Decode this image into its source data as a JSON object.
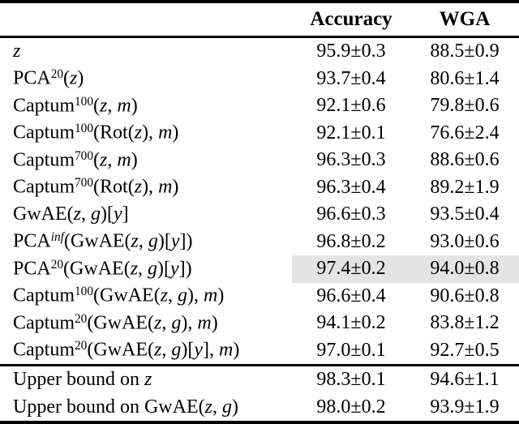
{
  "page": {
    "background": "#ffffff",
    "text_color": "#000000"
  },
  "table": {
    "header": {
      "accuracy": "Accuracy",
      "wga": "WGA"
    },
    "highlight_color": "#e4e4e4",
    "rows": [
      {
        "label": [
          [
            "it",
            "z"
          ]
        ],
        "accuracy": "95.9±0.3",
        "wga": "88.5±0.9",
        "highlight": false
      },
      {
        "label": [
          [
            "rm",
            "PCA"
          ],
          [
            "sup",
            "20"
          ],
          [
            "rm",
            "("
          ],
          [
            "it",
            "z"
          ],
          [
            "rm",
            ")"
          ]
        ],
        "accuracy": "93.7±0.4",
        "wga": "80.6±1.4",
        "highlight": false
      },
      {
        "label": [
          [
            "rm",
            "Captum"
          ],
          [
            "sup",
            "100"
          ],
          [
            "rm",
            "("
          ],
          [
            "it",
            "z"
          ],
          [
            "rm",
            ", "
          ],
          [
            "it",
            "m"
          ],
          [
            "rm",
            ")"
          ]
        ],
        "accuracy": "92.1±0.6",
        "wga": "79.8±0.6",
        "highlight": false
      },
      {
        "label": [
          [
            "rm",
            "Captum"
          ],
          [
            "sup",
            "100"
          ],
          [
            "rm",
            "(Rot("
          ],
          [
            "it",
            "z"
          ],
          [
            "rm",
            "), "
          ],
          [
            "it",
            "m"
          ],
          [
            "rm",
            ")"
          ]
        ],
        "accuracy": "92.1±0.1",
        "wga": "76.6±2.4",
        "highlight": false
      },
      {
        "label": [
          [
            "rm",
            "Captum"
          ],
          [
            "sup",
            "700"
          ],
          [
            "rm",
            "("
          ],
          [
            "it",
            "z"
          ],
          [
            "rm",
            ", "
          ],
          [
            "it",
            "m"
          ],
          [
            "rm",
            ")"
          ]
        ],
        "accuracy": "96.3±0.3",
        "wga": "88.6±0.6",
        "highlight": false
      },
      {
        "label": [
          [
            "rm",
            "Captum"
          ],
          [
            "sup",
            "700"
          ],
          [
            "rm",
            "(Rot("
          ],
          [
            "it",
            "z"
          ],
          [
            "rm",
            "), "
          ],
          [
            "it",
            "m"
          ],
          [
            "rm",
            ")"
          ]
        ],
        "accuracy": "96.3±0.4",
        "wga": "89.2±1.9",
        "highlight": false
      },
      {
        "label": [
          [
            "rm",
            "GwAE("
          ],
          [
            "it",
            "z"
          ],
          [
            "rm",
            ", "
          ],
          [
            "it",
            "g"
          ],
          [
            "rm",
            ")["
          ],
          [
            "it",
            "y"
          ],
          [
            "rm",
            "]"
          ]
        ],
        "accuracy": "96.6±0.3",
        "wga": "93.5±0.4",
        "highlight": false
      },
      {
        "label": [
          [
            "rm",
            "PCA"
          ],
          [
            "supit",
            "inf"
          ],
          [
            "rm",
            "(GwAE("
          ],
          [
            "it",
            "z"
          ],
          [
            "rm",
            ", "
          ],
          [
            "it",
            "g"
          ],
          [
            "rm",
            ")["
          ],
          [
            "it",
            "y"
          ],
          [
            "rm",
            "])"
          ]
        ],
        "accuracy": "96.8±0.2",
        "wga": "93.0±0.6",
        "highlight": false
      },
      {
        "label": [
          [
            "rm",
            "PCA"
          ],
          [
            "sup",
            "20"
          ],
          [
            "rm",
            "(GwAE("
          ],
          [
            "it",
            "z"
          ],
          [
            "rm",
            ", "
          ],
          [
            "it",
            "g"
          ],
          [
            "rm",
            ")["
          ],
          [
            "it",
            "y"
          ],
          [
            "rm",
            "])"
          ]
        ],
        "accuracy": "97.4±0.2",
        "wga": "94.0±0.8",
        "highlight": true
      },
      {
        "label": [
          [
            "rm",
            "Captum"
          ],
          [
            "sup",
            "100"
          ],
          [
            "rm",
            "(GwAE("
          ],
          [
            "it",
            "z"
          ],
          [
            "rm",
            ", "
          ],
          [
            "it",
            "g"
          ],
          [
            "rm",
            "), "
          ],
          [
            "it",
            "m"
          ],
          [
            "rm",
            ")"
          ]
        ],
        "accuracy": "96.6±0.4",
        "wga": "90.6±0.8",
        "highlight": false
      },
      {
        "label": [
          [
            "rm",
            "Captum"
          ],
          [
            "sup",
            "20"
          ],
          [
            "rm",
            "(GwAE("
          ],
          [
            "it",
            "z"
          ],
          [
            "rm",
            ", "
          ],
          [
            "it",
            "g"
          ],
          [
            "rm",
            "), "
          ],
          [
            "it",
            "m"
          ],
          [
            "rm",
            ")"
          ]
        ],
        "accuracy": "94.1±0.2",
        "wga": "83.8±1.2",
        "highlight": false
      },
      {
        "label": [
          [
            "rm",
            "Captum"
          ],
          [
            "sup",
            "20"
          ],
          [
            "rm",
            "(GwAE("
          ],
          [
            "it",
            "z"
          ],
          [
            "rm",
            ", "
          ],
          [
            "it",
            "g"
          ],
          [
            "rm",
            ")["
          ],
          [
            "it",
            "y"
          ],
          [
            "rm",
            "], "
          ],
          [
            "it",
            "m"
          ],
          [
            "rm",
            ")"
          ]
        ],
        "accuracy": "97.0±0.1",
        "wga": "92.7±0.5",
        "highlight": false
      }
    ],
    "footer_rows": [
      {
        "label": [
          [
            "rm",
            "Upper bound on "
          ],
          [
            "it",
            "z"
          ]
        ],
        "accuracy": "98.3±0.1",
        "wga": "94.6±1.1",
        "highlight": false
      },
      {
        "label": [
          [
            "rm",
            "Upper bound on GwAE("
          ],
          [
            "it",
            "z"
          ],
          [
            "rm",
            ", "
          ],
          [
            "it",
            "g"
          ],
          [
            "rm",
            ")"
          ]
        ],
        "accuracy": "98.0±0.2",
        "wga": "93.9±1.9",
        "highlight": false
      }
    ]
  }
}
